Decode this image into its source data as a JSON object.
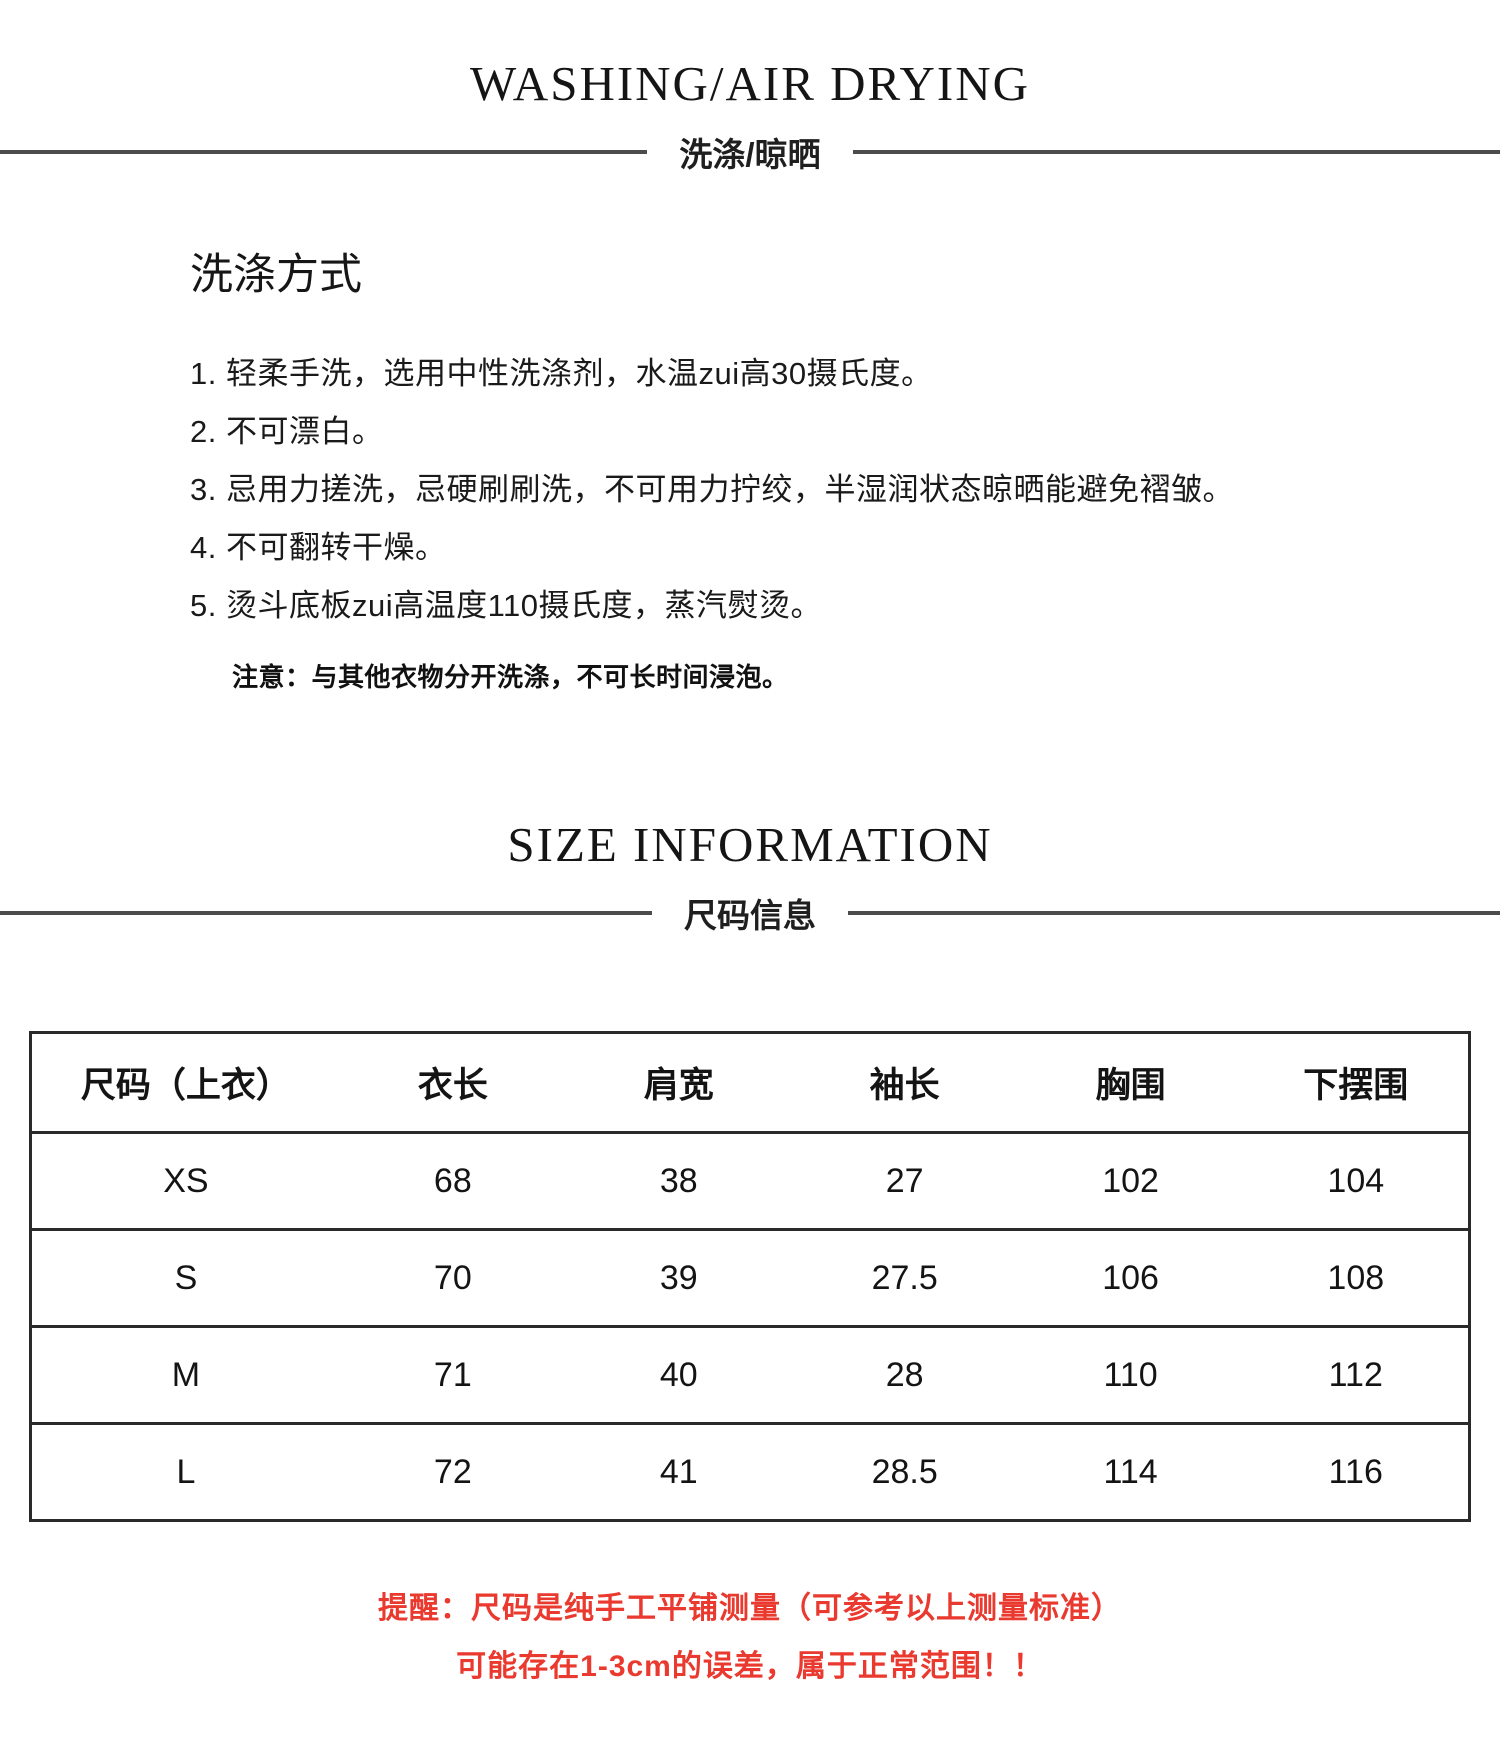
{
  "washing": {
    "title_en": "WASHING/AIR DRYING",
    "title_cn": "洗涤/晾晒",
    "method_heading": "洗涤方式",
    "steps": [
      "1. 轻柔手洗，选用中性洗涤剂，水温zui高30摄氏度。",
      "2. 不可漂白。",
      "3. 忌用力搓洗，忌硬刷刷洗，不可用力拧绞，半湿润状态晾晒能避免褶皱。",
      "4. 不可翻转干燥。",
      "5. 烫斗底板zui高温度110摄氏度，蒸汽熨烫。"
    ],
    "note": "注意：与其他衣物分开洗涤，不可长时间浸泡。"
  },
  "size": {
    "title_en": "SIZE INFORMATION",
    "title_cn": "尺码信息",
    "table": {
      "headers": [
        "尺码（上衣）",
        "衣长",
        "肩宽",
        "袖长",
        "胸围",
        "下摆围"
      ],
      "rows": [
        [
          "XS",
          "68",
          "38",
          "27",
          "102",
          "104"
        ],
        [
          "S",
          "70",
          "39",
          "27.5",
          "106",
          "108"
        ],
        [
          "M",
          "71",
          "40",
          "28",
          "110",
          "112"
        ],
        [
          "L",
          "72",
          "41",
          "28.5",
          "114",
          "116"
        ]
      ]
    },
    "reminder_line1": "提醒：尺码是纯手工平铺测量（可参考以上测量标准）",
    "reminder_line2": "可能存在1-3cm的误差，属于正常范围！！",
    "reminder_color": "#ea392e",
    "divider_line_color": "#4c4c4c"
  }
}
